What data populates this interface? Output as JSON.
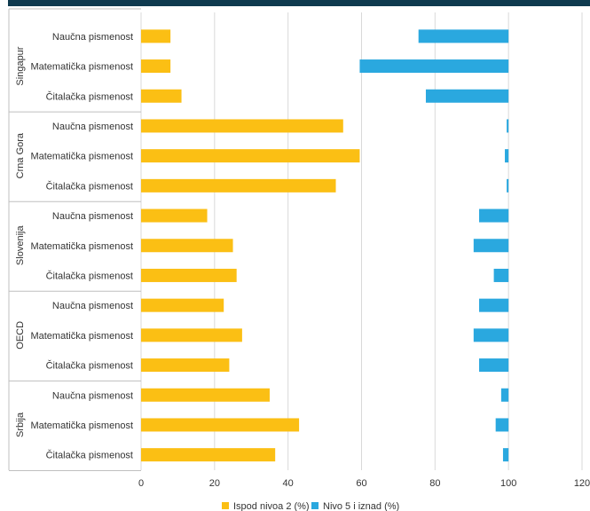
{
  "colors": {
    "top_band": "#0f3a4f",
    "below_level2": "#fbbf14",
    "level5_above": "#2aa8df",
    "grid": "#d9d9d9",
    "separator": "#bfbfbf"
  },
  "chart_data": {
    "type": "bar",
    "orientation": "horizontal",
    "xlim": [
      0,
      120
    ],
    "xticks": [
      "0",
      "20",
      "40",
      "60",
      "80",
      "100",
      "120"
    ],
    "grid": true,
    "legend_position": "bottom",
    "groups": [
      {
        "name": "Singapur",
        "rows": [
          {
            "label": "Naučna pismenost",
            "below_level2": 8,
            "level5_start": 75.5,
            "level5_end": 100
          },
          {
            "label": "Matematička pismenost",
            "below_level2": 8,
            "level5_start": 59.5,
            "level5_end": 100
          },
          {
            "label": "Čitalačka pismenost",
            "below_level2": 11,
            "level5_start": 77.5,
            "level5_end": 100
          }
        ]
      },
      {
        "name": "Crna Gora",
        "rows": [
          {
            "label": "Naučna pismenost",
            "below_level2": 55,
            "level5_start": 99.5,
            "level5_end": 100
          },
          {
            "label": "Matematička pismenost",
            "below_level2": 59.5,
            "level5_start": 99,
            "level5_end": 100
          },
          {
            "label": "Čitalačka pismenost",
            "below_level2": 53,
            "level5_start": 99.5,
            "level5_end": 100
          }
        ]
      },
      {
        "name": "Slovenija",
        "rows": [
          {
            "label": "Naučna pismenost",
            "below_level2": 18,
            "level5_start": 92,
            "level5_end": 100
          },
          {
            "label": "Matematička pismenost",
            "below_level2": 25,
            "level5_start": 90.5,
            "level5_end": 100
          },
          {
            "label": "Čitalačka pismenost",
            "below_level2": 26,
            "level5_start": 96,
            "level5_end": 100
          }
        ]
      },
      {
        "name": "OECD",
        "rows": [
          {
            "label": "Naučna pismenost",
            "below_level2": 22.5,
            "level5_start": 92,
            "level5_end": 100
          },
          {
            "label": "Matematička pismenost",
            "below_level2": 27.5,
            "level5_start": 90.5,
            "level5_end": 100
          },
          {
            "label": "Čitalačka pismenost",
            "below_level2": 24,
            "level5_start": 92,
            "level5_end": 100
          }
        ]
      },
      {
        "name": "Srbija",
        "rows": [
          {
            "label": "Naučna pismenost",
            "below_level2": 35,
            "level5_start": 98,
            "level5_end": 100
          },
          {
            "label": "Matematička pismenost",
            "below_level2": 43,
            "level5_start": 96.5,
            "level5_end": 100
          },
          {
            "label": "Čitalačka pismenost",
            "below_level2": 36.5,
            "level5_start": 98.5,
            "level5_end": 100
          }
        ]
      }
    ],
    "series": [
      {
        "key": "below_level2",
        "name": "Ispod nivoa 2 (%)"
      },
      {
        "key": "level5_above",
        "name": "Nivo 5 i iznad (%)"
      }
    ]
  }
}
